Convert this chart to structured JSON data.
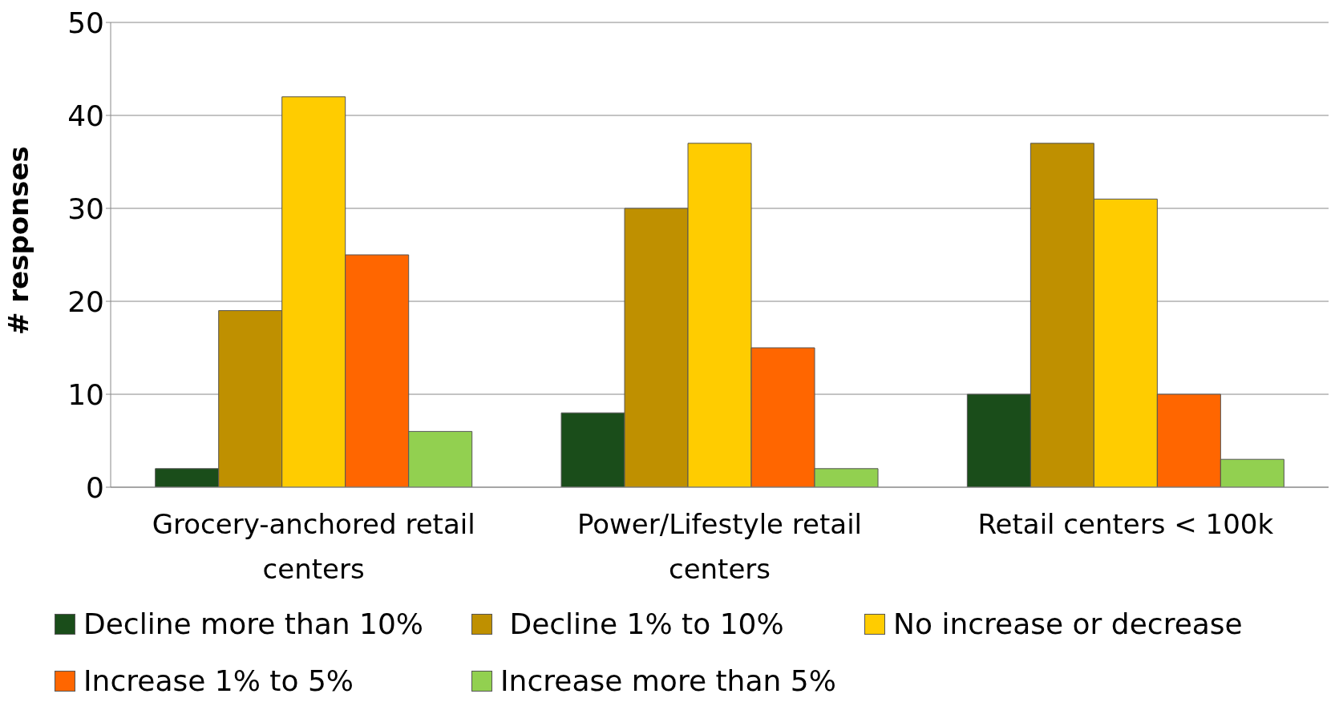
{
  "chart_data": {
    "type": "bar",
    "ylabel": "# responses",
    "categories": [
      "Grocery-anchored retail centers",
      "Power/Lifestyle retail centers",
      "Retail centers < 100k"
    ],
    "series": [
      {
        "name": "Decline more than 10%",
        "color": "#1a4d1a",
        "values": [
          2,
          8,
          10
        ]
      },
      {
        "name": " Decline 1% to 10%",
        "color": "#bf9000",
        "values": [
          19,
          30,
          37
        ]
      },
      {
        "name": "No increase or decrease",
        "color": "#ffcc00",
        "values": [
          42,
          37,
          31
        ]
      },
      {
        "name": "Increase 1% to 5%",
        "color": "#ff6600",
        "values": [
          25,
          15,
          10
        ]
      },
      {
        "name": "Increase more than 5%",
        "color": "#92d050",
        "values": [
          6,
          2,
          3
        ]
      }
    ],
    "ylim": [
      0,
      50
    ],
    "yticks": [
      0,
      10,
      20,
      30,
      40,
      50
    ],
    "grid": "y",
    "legend": "bottom"
  }
}
